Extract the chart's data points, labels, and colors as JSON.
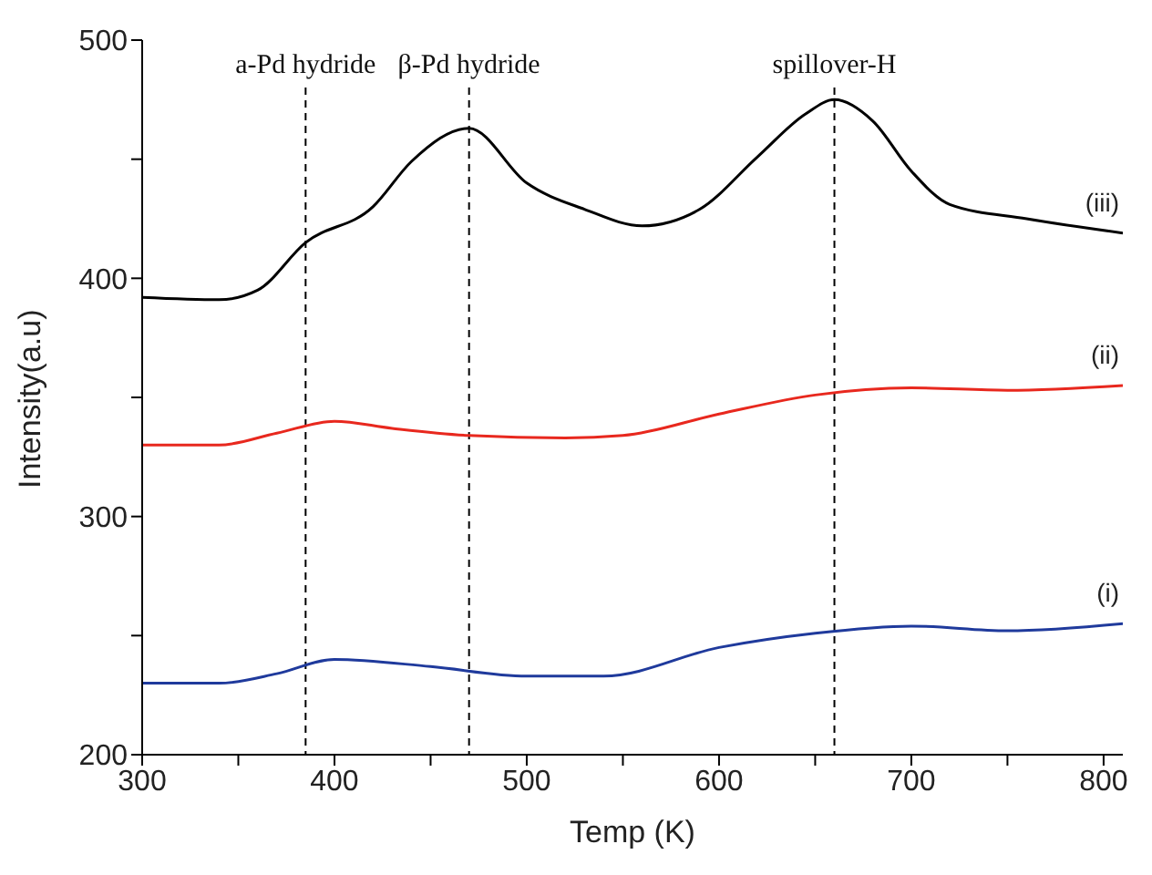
{
  "chart_data": {
    "type": "line",
    "xlabel": "Temp (K)",
    "ylabel": "Intensity(a.u)",
    "xlim": [
      300,
      810
    ],
    "xticks": [
      300,
      {
        "value": 350,
        "label": null
      },
      400,
      {
        "value": 450,
        "label": null
      },
      500,
      {
        "value": 550,
        "label": null
      },
      600,
      {
        "value": 650,
        "label": null
      },
      700,
      {
        "value": 750,
        "label": null
      },
      800
    ],
    "ylim": [
      200,
      500
    ],
    "yticks": [
      200,
      {
        "value": 250,
        "label": null
      },
      300,
      {
        "value": 350,
        "label": null
      },
      400,
      {
        "value": 450,
        "label": null
      },
      500
    ],
    "marker": "none",
    "line_style": "solid",
    "ref_lines": [
      {
        "axis": "x",
        "value": 385,
        "label": "a-Pd hydride",
        "color": "#000000",
        "line_style": "dashed"
      },
      {
        "axis": "x",
        "value": 470,
        "label": "β-Pd hydride",
        "color": "#000000",
        "line_style": "dashed"
      },
      {
        "axis": "x",
        "value": 660,
        "label": "spillover-H",
        "color": "#000000",
        "line_style": "dashed"
      }
    ],
    "series": [
      {
        "name": "(iii)",
        "color": "#000000",
        "x": [
          300,
          340,
          360,
          385,
          420,
          440,
          470,
          500,
          530,
          560,
          590,
          620,
          645,
          660,
          680,
          700,
          720,
          760,
          810
        ],
        "values": [
          392,
          391,
          395,
          415,
          430,
          449,
          463,
          440,
          429,
          422,
          429,
          451,
          469,
          475,
          466,
          445,
          431,
          425,
          419
        ]
      },
      {
        "name": "(ii)",
        "color": "#e8281e",
        "x": [
          300,
          340,
          370,
          400,
          430,
          470,
          520,
          550,
          600,
          650,
          700,
          750,
          810
        ],
        "values": [
          330,
          330,
          335,
          340,
          337,
          334,
          333,
          334,
          343,
          351,
          354,
          353,
          355
        ]
      },
      {
        "name": "(i)",
        "color": "#1f3a9c",
        "x": [
          300,
          340,
          370,
          400,
          450,
          500,
          540,
          600,
          650,
          700,
          750,
          810
        ],
        "values": [
          230,
          230,
          234,
          240,
          237,
          233,
          233,
          245,
          251,
          254,
          252,
          255
        ]
      }
    ]
  }
}
